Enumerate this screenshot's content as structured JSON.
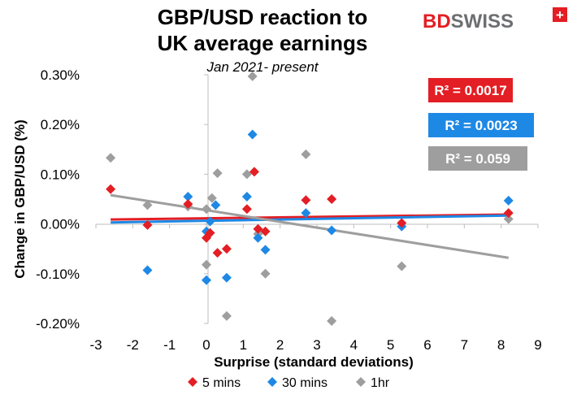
{
  "brand": {
    "prefix": "BD",
    "suffix": "SWISS",
    "mark": "+"
  },
  "chart_data": {
    "type": "scatter",
    "title_line1": "GBP/USD reaction to",
    "title_line2": "UK average earnings",
    "subtitle": "Jan 2021- present",
    "xlabel": "Surprise (standard deviations)",
    "ylabel": "Change in GBP/USD  (%)",
    "xlim": [
      -3,
      9
    ],
    "ylim": [
      -0.2,
      0.3
    ],
    "x_ticks": [
      -3,
      -2,
      -1,
      0,
      1,
      2,
      3,
      4,
      5,
      6,
      7,
      8,
      9
    ],
    "x_tick_labels": [
      "-3",
      "-2",
      "-1",
      "0",
      "1",
      "2",
      "3",
      "4",
      "5",
      "6",
      "7",
      "8",
      "9"
    ],
    "y_ticks": [
      -0.2,
      -0.1,
      0.0,
      0.1,
      0.2,
      0.3
    ],
    "y_tick_labels": [
      "-0.20%",
      "-0.10%",
      "0.00%",
      "0.10%",
      "0.20%",
      "0.30%"
    ],
    "grid": false,
    "legend_position": "bottom",
    "series": [
      {
        "name": "5 mins",
        "color": "#e31e24",
        "marker": "diamond",
        "r2_label": "R² = 0.0017",
        "trend": [
          0.009,
          0.019
        ],
        "points": [
          [
            -2.6,
            0.07
          ],
          [
            -1.6,
            -0.002
          ],
          [
            -0.5,
            0.04
          ],
          [
            0,
            -0.028
          ],
          [
            0.1,
            -0.018
          ],
          [
            0.3,
            -0.058
          ],
          [
            0.55,
            -0.05
          ],
          [
            1.1,
            0.03
          ],
          [
            1.3,
            0.105
          ],
          [
            1.4,
            -0.01
          ],
          [
            1.6,
            -0.015
          ],
          [
            2.7,
            0.048
          ],
          [
            3.4,
            0.05
          ],
          [
            5.3,
            0.002
          ],
          [
            8.2,
            0.022
          ]
        ]
      },
      {
        "name": "30 mins",
        "color": "#1e88e5",
        "marker": "diamond",
        "r2_label": "R² = 0.0023",
        "trend": [
          0.003,
          0.017
        ],
        "points": [
          [
            -1.6,
            -0.093
          ],
          [
            -0.5,
            0.055
          ],
          [
            0,
            -0.015
          ],
          [
            0,
            -0.113
          ],
          [
            0.1,
            0.005
          ],
          [
            0.25,
            0.038
          ],
          [
            0.55,
            -0.108
          ],
          [
            1.1,
            0.055
          ],
          [
            1.25,
            0.18
          ],
          [
            1.4,
            -0.028
          ],
          [
            1.6,
            -0.052
          ],
          [
            2.7,
            0.022
          ],
          [
            3.4,
            -0.013
          ],
          [
            5.3,
            -0.005
          ],
          [
            8.2,
            0.047
          ]
        ]
      },
      {
        "name": "1hr",
        "color": "#9e9e9e",
        "marker": "diamond",
        "r2_label": "R² = 0.059",
        "trend": [
          0.058,
          -0.068
        ],
        "points": [
          [
            -2.6,
            0.133
          ],
          [
            -1.6,
            0.038
          ],
          [
            -0.5,
            0.035
          ],
          [
            0,
            0.03
          ],
          [
            0,
            -0.082
          ],
          [
            0.15,
            0.052
          ],
          [
            0.3,
            0.102
          ],
          [
            0.55,
            -0.185
          ],
          [
            1.1,
            0.1
          ],
          [
            1.25,
            0.297
          ],
          [
            1.4,
            -0.02
          ],
          [
            1.6,
            -0.1
          ],
          [
            2.7,
            0.14
          ],
          [
            3.4,
            -0.195
          ],
          [
            5.3,
            -0.085
          ],
          [
            8.2,
            0.01
          ]
        ]
      }
    ]
  }
}
